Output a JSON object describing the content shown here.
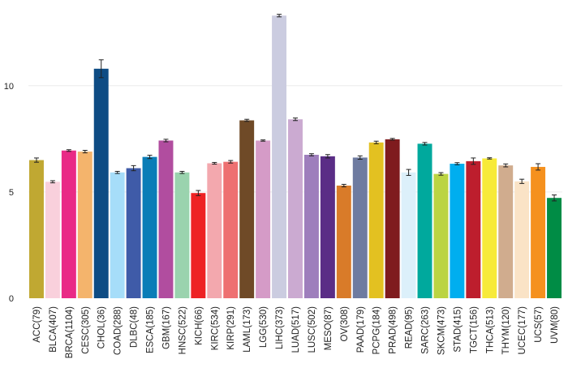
{
  "chart_data": {
    "type": "bar",
    "title": "",
    "xlabel": "",
    "ylabel": "",
    "ylim": [
      0,
      13.5
    ],
    "yticks": [
      0,
      5,
      10
    ],
    "grid": true,
    "legend": "none",
    "categories": [
      "ACC(79)",
      "BLCA(407)",
      "BRCA(1104)",
      "CESC(305)",
      "CHOL(36)",
      "COAD(288)",
      "DLBC(48)",
      "ESCA(185)",
      "GBM(167)",
      "HNSC(522)",
      "KICH(66)",
      "KIRC(534)",
      "KIRP(291)",
      "LAML(173)",
      "LGG(530)",
      "LIHC(373)",
      "LUAD(517)",
      "LUSC(502)",
      "MESO(87)",
      "OV(308)",
      "PAAD(179)",
      "PCPG(184)",
      "PRAD(498)",
      "READ(95)",
      "SARC(263)",
      "SKCM(473)",
      "STAD(415)",
      "TGCT(156)",
      "THCA(513)",
      "THYM(120)",
      "UCEC(177)",
      "UCS(57)",
      "UVM(80)"
    ],
    "values": [
      6.5,
      5.48,
      6.95,
      6.9,
      10.8,
      5.92,
      6.12,
      6.65,
      7.42,
      5.92,
      4.95,
      6.35,
      6.42,
      8.37,
      7.42,
      13.3,
      8.42,
      6.75,
      6.68,
      5.3,
      6.62,
      7.33,
      7.48,
      5.92,
      7.27,
      5.85,
      6.33,
      6.45,
      6.58,
      6.25,
      5.5,
      6.18,
      4.72
    ],
    "errors": [
      0.1,
      0.05,
      0.04,
      0.06,
      0.42,
      0.05,
      0.12,
      0.08,
      0.06,
      0.05,
      0.12,
      0.04,
      0.06,
      0.05,
      0.03,
      0.06,
      0.06,
      0.05,
      0.08,
      0.06,
      0.08,
      0.06,
      0.04,
      0.14,
      0.06,
      0.06,
      0.05,
      0.15,
      0.03,
      0.07,
      0.1,
      0.15,
      0.14
    ],
    "colors": [
      "#c0a832",
      "#f9d0dc",
      "#e92a86",
      "#f4b46c",
      "#0e4c84",
      "#a6ddf9",
      "#3f5ba8",
      "#0a7db7",
      "#b14d9f",
      "#9ad3ae",
      "#ee2224",
      "#f3a8ae",
      "#ee7071",
      "#6f4a27",
      "#d59bc7",
      "#cbcce0",
      "#cbaad1",
      "#9e7ebc",
      "#5a2d86",
      "#d97b29",
      "#6e7ba0",
      "#e3c121",
      "#7f1b1e",
      "#dcf0fa",
      "#00a99d",
      "#bbd442",
      "#00aeef",
      "#bd1e2d",
      "#f7ea39",
      "#d0ac8e",
      "#fae3c6",
      "#f5911e",
      "#008c45"
    ]
  }
}
